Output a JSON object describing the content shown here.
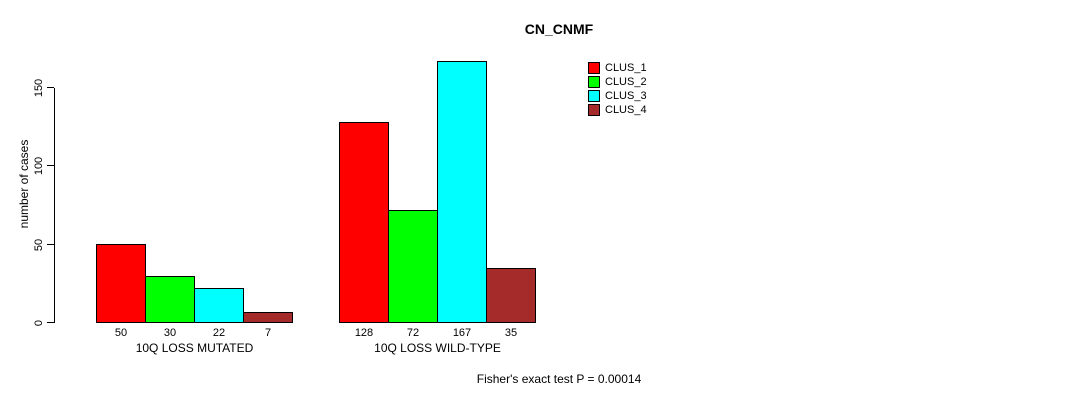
{
  "chart_data": {
    "type": "bar",
    "title": "CN_CNMF",
    "ylabel": "number of cases",
    "categories": [
      "10Q LOSS MUTATED",
      "10Q LOSS WILD-TYPE"
    ],
    "series": [
      {
        "name": "CLUS_1",
        "color": "#ff0000",
        "values": [
          50,
          128
        ]
      },
      {
        "name": "CLUS_2",
        "color": "#00ff00",
        "values": [
          30,
          72
        ]
      },
      {
        "name": "CLUS_3",
        "color": "#00ffff",
        "values": [
          22,
          167
        ]
      },
      {
        "name": "CLUS_4",
        "color": "#a52a2a",
        "values": [
          7,
          35
        ]
      }
    ],
    "yticks": [
      0,
      50,
      100,
      150
    ],
    "ylim": [
      0,
      170
    ],
    "grid": false,
    "legend_position": "top-right",
    "bar_value_labels": true,
    "annotation": "Fisher's exact test P = 0.00014"
  }
}
